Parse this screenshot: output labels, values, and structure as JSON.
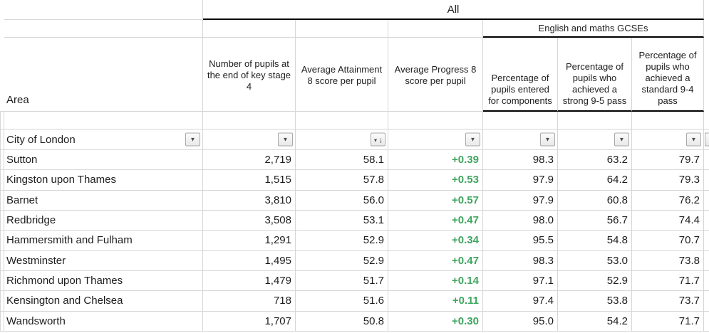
{
  "table": {
    "group_header": "All",
    "subgroup_header": "English and maths GCSEs",
    "columns": {
      "area": "Area",
      "pupils": "Number of pupils at the end of key stage 4",
      "attainment8": "Average Attainment 8 score per pupil",
      "progress8": "Average Progress 8 score per pupil",
      "entered": "Percentage of pupils entered for components",
      "strong": "Percentage of pupils who achieved a strong 9-5 pass",
      "standard": "Percentage of pupils who achieved a standard 9-4 pass"
    },
    "filter_row": {
      "label": "City of London"
    },
    "icons": {
      "filter_dropdown": "▼",
      "sort_descending": "↓"
    },
    "colors": {
      "highlight_red": "#e0403a",
      "progress_green": "#3fa55f"
    },
    "rows": [
      {
        "area": "Sutton",
        "pupils": "2,719",
        "attainment8": "58.1",
        "progress8": "+0.39",
        "entered": "98.3",
        "strong": "63.2",
        "standard": "79.7",
        "highlight": false
      },
      {
        "area": "Kingston upon Thames",
        "pupils": "1,515",
        "attainment8": "57.8",
        "progress8": "+0.53",
        "entered": "97.9",
        "strong": "64.2",
        "standard": "79.3",
        "highlight": true
      },
      {
        "area": "Barnet",
        "pupils": "3,810",
        "attainment8": "56.0",
        "progress8": "+0.57",
        "entered": "97.9",
        "strong": "60.8",
        "standard": "76.2",
        "highlight": true
      },
      {
        "area": "Redbridge",
        "pupils": "3,508",
        "attainment8": "53.1",
        "progress8": "+0.47",
        "entered": "98.0",
        "strong": "56.7",
        "standard": "74.4",
        "highlight": false
      },
      {
        "area": "Hammersmith and Fulham",
        "pupils": "1,291",
        "attainment8": "52.9",
        "progress8": "+0.34",
        "entered": "95.5",
        "strong": "54.8",
        "standard": "70.7",
        "highlight": true
      },
      {
        "area": "Westminster",
        "pupils": "1,495",
        "attainment8": "52.9",
        "progress8": "+0.47",
        "entered": "98.3",
        "strong": "53.0",
        "standard": "73.8",
        "highlight": false
      },
      {
        "area": "Richmond upon Thames",
        "pupils": "1,479",
        "attainment8": "51.7",
        "progress8": "+0.14",
        "entered": "97.1",
        "strong": "52.9",
        "standard": "71.7",
        "highlight": false
      },
      {
        "area": "Kensington and Chelsea",
        "pupils": "718",
        "attainment8": "51.6",
        "progress8": "+0.11",
        "entered": "97.4",
        "strong": "53.8",
        "standard": "73.7",
        "highlight": false
      },
      {
        "area": "Wandsworth",
        "pupils": "1,707",
        "attainment8": "50.8",
        "progress8": "+0.30",
        "entered": "95.0",
        "strong": "54.2",
        "standard": "71.7",
        "highlight": false
      }
    ]
  }
}
